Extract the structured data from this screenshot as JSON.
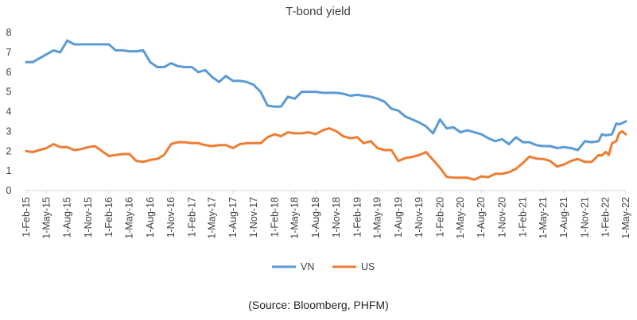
{
  "chart_data": {
    "type": "line",
    "title": "T-bond yield",
    "xlabel": "",
    "ylabel": "",
    "ylim": [
      0,
      8
    ],
    "yticks": [
      "0",
      "1",
      "2",
      "3",
      "4",
      "5",
      "6",
      "7",
      "8"
    ],
    "xlim": [
      "2015-02-01",
      "2022-05-01"
    ],
    "xticks": [
      {
        "date": "2015-02-01",
        "label": "1-Feb-15"
      },
      {
        "date": "2015-05-01",
        "label": "1-May-15"
      },
      {
        "date": "2015-08-01",
        "label": "1-Aug-15"
      },
      {
        "date": "2015-11-01",
        "label": "1-Nov-15"
      },
      {
        "date": "2016-02-01",
        "label": "1-Feb-16"
      },
      {
        "date": "2016-05-01",
        "label": "1-May-16"
      },
      {
        "date": "2016-08-01",
        "label": "1-Aug-16"
      },
      {
        "date": "2016-11-01",
        "label": "1-Nov-16"
      },
      {
        "date": "2017-02-01",
        "label": "1-Feb-17"
      },
      {
        "date": "2017-05-01",
        "label": "1-May-17"
      },
      {
        "date": "2017-08-01",
        "label": "1-Aug-17"
      },
      {
        "date": "2017-11-01",
        "label": "1-Nov-17"
      },
      {
        "date": "2018-02-01",
        "label": "1-Feb-18"
      },
      {
        "date": "2018-05-01",
        "label": "1-May-18"
      },
      {
        "date": "2018-08-01",
        "label": "1-Aug-18"
      },
      {
        "date": "2018-11-01",
        "label": "1-Nov-18"
      },
      {
        "date": "2019-02-01",
        "label": "1-Feb-19"
      },
      {
        "date": "2019-05-01",
        "label": "1-May-19"
      },
      {
        "date": "2019-08-01",
        "label": "1-Aug-19"
      },
      {
        "date": "2019-11-01",
        "label": "1-Nov-19"
      },
      {
        "date": "2020-02-01",
        "label": "1-Feb-20"
      },
      {
        "date": "2020-05-01",
        "label": "1-May-20"
      },
      {
        "date": "2020-08-01",
        "label": "1-Aug-20"
      },
      {
        "date": "2020-11-01",
        "label": "1-Nov-20"
      },
      {
        "date": "2021-02-01",
        "label": "1-Feb-21"
      },
      {
        "date": "2021-05-01",
        "label": "1-May-21"
      },
      {
        "date": "2021-08-01",
        "label": "1-Aug-21"
      },
      {
        "date": "2021-11-01",
        "label": "1-Nov-21"
      },
      {
        "date": "2022-02-01",
        "label": "1-Feb-22"
      },
      {
        "date": "2022-05-01",
        "label": "1-May-22"
      }
    ],
    "grid": false,
    "legend_position": "bottom",
    "series": [
      {
        "name": "VN",
        "color": "#5B9BD5",
        "points": [
          [
            "2015-02-01",
            6.5
          ],
          [
            "2015-03-01",
            6.5
          ],
          [
            "2015-04-01",
            6.7
          ],
          [
            "2015-05-01",
            6.9
          ],
          [
            "2015-06-01",
            7.1
          ],
          [
            "2015-07-01",
            7.0
          ],
          [
            "2015-08-01",
            7.6
          ],
          [
            "2015-09-01",
            7.4
          ],
          [
            "2015-10-01",
            7.4
          ],
          [
            "2015-11-01",
            7.4
          ],
          [
            "2015-12-01",
            7.4
          ],
          [
            "2016-01-01",
            7.4
          ],
          [
            "2016-02-01",
            7.4
          ],
          [
            "2016-03-01",
            7.1
          ],
          [
            "2016-04-01",
            7.1
          ],
          [
            "2016-05-01",
            7.05
          ],
          [
            "2016-06-01",
            7.05
          ],
          [
            "2016-07-01",
            7.1
          ],
          [
            "2016-08-01",
            6.5
          ],
          [
            "2016-09-01",
            6.25
          ],
          [
            "2016-10-01",
            6.25
          ],
          [
            "2016-11-01",
            6.45
          ],
          [
            "2016-12-01",
            6.3
          ],
          [
            "2017-01-01",
            6.25
          ],
          [
            "2017-02-01",
            6.25
          ],
          [
            "2017-03-01",
            6.0
          ],
          [
            "2017-04-01",
            6.1
          ],
          [
            "2017-05-01",
            5.75
          ],
          [
            "2017-06-01",
            5.5
          ],
          [
            "2017-07-01",
            5.8
          ],
          [
            "2017-08-01",
            5.55
          ],
          [
            "2017-09-01",
            5.55
          ],
          [
            "2017-10-01",
            5.5
          ],
          [
            "2017-11-01",
            5.35
          ],
          [
            "2017-12-01",
            5.0
          ],
          [
            "2018-01-01",
            4.3
          ],
          [
            "2018-02-01",
            4.25
          ],
          [
            "2018-03-01",
            4.25
          ],
          [
            "2018-04-01",
            4.75
          ],
          [
            "2018-05-01",
            4.65
          ],
          [
            "2018-06-01",
            5.0
          ],
          [
            "2018-07-01",
            5.0
          ],
          [
            "2018-08-01",
            5.0
          ],
          [
            "2018-09-01",
            4.95
          ],
          [
            "2018-10-01",
            4.95
          ],
          [
            "2018-11-01",
            4.95
          ],
          [
            "2018-12-01",
            4.9
          ],
          [
            "2019-01-01",
            4.8
          ],
          [
            "2019-02-01",
            4.85
          ],
          [
            "2019-03-01",
            4.8
          ],
          [
            "2019-04-01",
            4.75
          ],
          [
            "2019-05-01",
            4.65
          ],
          [
            "2019-06-01",
            4.5
          ],
          [
            "2019-07-01",
            4.15
          ],
          [
            "2019-08-01",
            4.05
          ],
          [
            "2019-09-01",
            3.75
          ],
          [
            "2019-10-01",
            3.6
          ],
          [
            "2019-11-01",
            3.45
          ],
          [
            "2019-12-01",
            3.25
          ],
          [
            "2020-01-01",
            2.9
          ],
          [
            "2020-02-01",
            3.6
          ],
          [
            "2020-03-01",
            3.15
          ],
          [
            "2020-04-01",
            3.2
          ],
          [
            "2020-05-01",
            2.95
          ],
          [
            "2020-06-01",
            3.05
          ],
          [
            "2020-07-01",
            2.95
          ],
          [
            "2020-08-01",
            2.85
          ],
          [
            "2020-09-01",
            2.65
          ],
          [
            "2020-10-01",
            2.5
          ],
          [
            "2020-11-01",
            2.6
          ],
          [
            "2020-12-01",
            2.35
          ],
          [
            "2021-01-01",
            2.7
          ],
          [
            "2021-02-01",
            2.45
          ],
          [
            "2021-03-01",
            2.45
          ],
          [
            "2021-04-01",
            2.3
          ],
          [
            "2021-05-01",
            2.25
          ],
          [
            "2021-06-01",
            2.25
          ],
          [
            "2021-07-01",
            2.15
          ],
          [
            "2021-08-01",
            2.2
          ],
          [
            "2021-09-01",
            2.15
          ],
          [
            "2021-10-01",
            2.05
          ],
          [
            "2021-11-01",
            2.5
          ],
          [
            "2021-12-01",
            2.45
          ],
          [
            "2022-01-01",
            2.5
          ],
          [
            "2022-01-15",
            2.85
          ],
          [
            "2022-02-01",
            2.8
          ],
          [
            "2022-03-01",
            2.85
          ],
          [
            "2022-03-20",
            3.4
          ],
          [
            "2022-04-01",
            3.35
          ],
          [
            "2022-05-01",
            3.5
          ]
        ]
      },
      {
        "name": "US",
        "color": "#ED7D31",
        "points": [
          [
            "2015-02-01",
            2.0
          ],
          [
            "2015-03-01",
            1.95
          ],
          [
            "2015-04-01",
            2.05
          ],
          [
            "2015-05-01",
            2.15
          ],
          [
            "2015-06-01",
            2.35
          ],
          [
            "2015-07-01",
            2.2
          ],
          [
            "2015-08-01",
            2.2
          ],
          [
            "2015-09-01",
            2.05
          ],
          [
            "2015-10-01",
            2.1
          ],
          [
            "2015-11-01",
            2.2
          ],
          [
            "2015-12-01",
            2.25
          ],
          [
            "2016-01-01",
            2.0
          ],
          [
            "2016-02-01",
            1.75
          ],
          [
            "2016-03-01",
            1.8
          ],
          [
            "2016-04-01",
            1.85
          ],
          [
            "2016-05-01",
            1.85
          ],
          [
            "2016-06-01",
            1.5
          ],
          [
            "2016-07-01",
            1.45
          ],
          [
            "2016-08-01",
            1.55
          ],
          [
            "2016-09-01",
            1.6
          ],
          [
            "2016-10-01",
            1.8
          ],
          [
            "2016-11-01",
            2.35
          ],
          [
            "2016-12-01",
            2.45
          ],
          [
            "2017-01-01",
            2.45
          ],
          [
            "2017-02-01",
            2.4
          ],
          [
            "2017-03-01",
            2.4
          ],
          [
            "2017-04-01",
            2.3
          ],
          [
            "2017-05-01",
            2.25
          ],
          [
            "2017-06-01",
            2.3
          ],
          [
            "2017-07-01",
            2.3
          ],
          [
            "2017-08-01",
            2.15
          ],
          [
            "2017-09-01",
            2.35
          ],
          [
            "2017-10-01",
            2.4
          ],
          [
            "2017-11-01",
            2.4
          ],
          [
            "2017-12-01",
            2.4
          ],
          [
            "2018-01-01",
            2.7
          ],
          [
            "2018-02-01",
            2.85
          ],
          [
            "2018-03-01",
            2.75
          ],
          [
            "2018-04-01",
            2.95
          ],
          [
            "2018-05-01",
            2.9
          ],
          [
            "2018-06-01",
            2.9
          ],
          [
            "2018-07-01",
            2.95
          ],
          [
            "2018-08-01",
            2.85
          ],
          [
            "2018-09-01",
            3.05
          ],
          [
            "2018-10-01",
            3.15
          ],
          [
            "2018-11-01",
            3.0
          ],
          [
            "2018-12-01",
            2.75
          ],
          [
            "2019-01-01",
            2.65
          ],
          [
            "2019-02-01",
            2.7
          ],
          [
            "2019-03-01",
            2.4
          ],
          [
            "2019-04-01",
            2.5
          ],
          [
            "2019-05-01",
            2.15
          ],
          [
            "2019-06-01",
            2.05
          ],
          [
            "2019-07-01",
            2.05
          ],
          [
            "2019-08-01",
            1.5
          ],
          [
            "2019-09-01",
            1.65
          ],
          [
            "2019-10-01",
            1.7
          ],
          [
            "2019-11-01",
            1.8
          ],
          [
            "2019-12-01",
            1.95
          ],
          [
            "2020-01-01",
            1.55
          ],
          [
            "2020-02-01",
            1.15
          ],
          [
            "2020-03-01",
            0.7
          ],
          [
            "2020-04-01",
            0.65
          ],
          [
            "2020-05-01",
            0.65
          ],
          [
            "2020-06-01",
            0.65
          ],
          [
            "2020-07-01",
            0.55
          ],
          [
            "2020-08-01",
            0.72
          ],
          [
            "2020-09-01",
            0.68
          ],
          [
            "2020-10-01",
            0.85
          ],
          [
            "2020-11-01",
            0.85
          ],
          [
            "2020-12-01",
            0.93
          ],
          [
            "2021-01-01",
            1.1
          ],
          [
            "2021-02-01",
            1.4
          ],
          [
            "2021-03-01",
            1.72
          ],
          [
            "2021-04-01",
            1.62
          ],
          [
            "2021-05-01",
            1.6
          ],
          [
            "2021-06-01",
            1.5
          ],
          [
            "2021-07-01",
            1.22
          ],
          [
            "2021-08-01",
            1.32
          ],
          [
            "2021-09-01",
            1.5
          ],
          [
            "2021-10-01",
            1.6
          ],
          [
            "2021-11-01",
            1.45
          ],
          [
            "2021-12-01",
            1.45
          ],
          [
            "2022-01-01",
            1.8
          ],
          [
            "2022-01-15",
            1.78
          ],
          [
            "2022-02-01",
            1.95
          ],
          [
            "2022-02-15",
            1.8
          ],
          [
            "2022-03-01",
            2.4
          ],
          [
            "2022-03-20",
            2.5
          ],
          [
            "2022-04-01",
            2.9
          ],
          [
            "2022-04-15",
            3.0
          ],
          [
            "2022-05-01",
            2.85
          ]
        ]
      }
    ]
  },
  "source_note": "(Source: Bloomberg, PHFM)"
}
